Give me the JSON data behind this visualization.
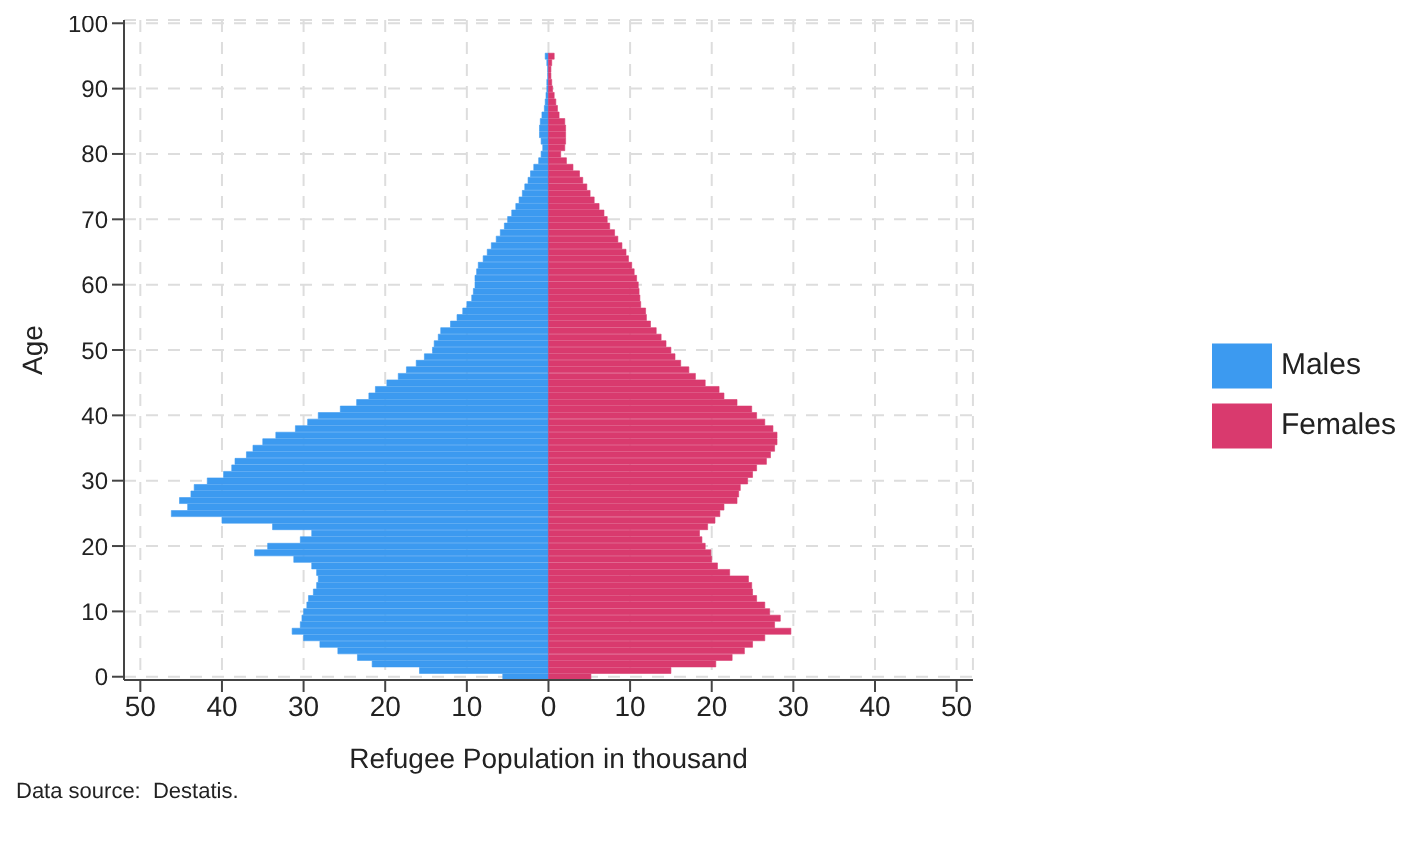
{
  "chart_data": {
    "type": "bar",
    "orientation": "horizontal",
    "stacked": true,
    "xlabel": "Refugee Population in thousand",
    "ylabel": "Age",
    "annotations": [
      "Data source:  Destatis."
    ],
    "categories": [
      "100",
      null,
      null,
      null,
      null,
      null,
      null,
      null,
      null,
      null,
      "90",
      null,
      null,
      null,
      null,
      null,
      null,
      null,
      null,
      null,
      "80",
      null,
      null,
      null,
      null,
      null,
      null,
      null,
      null,
      null,
      "70",
      null,
      null,
      null,
      null,
      null,
      null,
      null,
      null,
      null,
      "60",
      null,
      null,
      null,
      null,
      null,
      null,
      null,
      null,
      null,
      "50",
      null,
      null,
      null,
      null,
      null,
      null,
      null,
      null,
      null,
      "40",
      null,
      null,
      null,
      null,
      null,
      null,
      null,
      null,
      null,
      "30",
      null,
      null,
      null,
      null,
      null,
      null,
      null,
      null,
      null,
      "20",
      null,
      null,
      null,
      null,
      null,
      null,
      null,
      null,
      null,
      "10",
      null,
      null,
      null,
      null,
      null,
      null,
      null,
      null,
      null,
      "0"
    ],
    "series": [
      {
        "name": "Males",
        "color": "#3c9af0",
        "values": [
          null,
          null,
          null,
          null,
          null,
          -0.4,
          -0.2,
          -0.1,
          -0.1,
          -0.2,
          -0.2,
          -0.3,
          -0.4,
          -0.5,
          -0.8,
          -1,
          -1.1,
          -1.1,
          -0.9,
          -0.7,
          -0.9,
          -1.2,
          -1.8,
          -2.2,
          -2.5,
          -2.9,
          -3.2,
          -3.6,
          -4,
          -4.5,
          -5,
          -5.4,
          -5.9,
          -6.4,
          -7,
          -7.5,
          -8,
          -8.6,
          -8.8,
          -9,
          -9,
          -9.2,
          -9.4,
          -10,
          -10.5,
          -11.2,
          -12,
          -13.2,
          -13.5,
          -14,
          -14.2,
          -15.2,
          -16.2,
          -17.4,
          -18.4,
          -19.8,
          -21.2,
          -22,
          -23.5,
          -25.5,
          -28.2,
          -29.5,
          -31,
          -33.4,
          -35,
          -36.2,
          -37,
          -38.4,
          -38.8,
          -39.8,
          -41.8,
          -43.4,
          -43.8,
          -45.2,
          -44.2,
          -46.2,
          -40,
          -33.8,
          -29,
          -30.4,
          -34.4,
          -36,
          -31.2,
          -29,
          -28.4,
          -28.2,
          -28.4,
          -28.8,
          -29.4,
          -29.6,
          -30,
          -30.2,
          -30.4,
          -31.4,
          -30,
          -28,
          -25.8,
          -23.4,
          -21.6,
          -15.8,
          -5.6
        ]
      },
      {
        "name": "Females",
        "color": "#d93a6e",
        "values": [
          null,
          null,
          null,
          null,
          null,
          0.7,
          0.4,
          0.3,
          0.3,
          0.4,
          0.5,
          0.7,
          0.9,
          1.1,
          1.3,
          2,
          2.1,
          2.1,
          2.1,
          2,
          1.5,
          2.2,
          3,
          3.8,
          4.2,
          4.7,
          5.1,
          5.6,
          6.2,
          6.8,
          7.2,
          7.5,
          8.1,
          8.5,
          9,
          9.5,
          9.8,
          10.2,
          10.5,
          10.8,
          11,
          11.1,
          11.2,
          11.3,
          11.9,
          12,
          12.5,
          13.2,
          13.8,
          14.4,
          15,
          15.5,
          16.2,
          17.2,
          18,
          19.2,
          20.9,
          21.5,
          23.1,
          24.9,
          25.5,
          26.5,
          27.5,
          28,
          28,
          27.7,
          27.2,
          26.7,
          25.5,
          25,
          24.4,
          23.5,
          23.3,
          23.1,
          21.5,
          21,
          20.4,
          19.5,
          18.5,
          18.8,
          19.2,
          19.9,
          20,
          20.7,
          22.2,
          24.5,
          24.9,
          25,
          25.5,
          26.5,
          27.1,
          28.4,
          27.7,
          29.7,
          26.5,
          25,
          24,
          22.5,
          20.5,
          15,
          5.2
        ]
      }
    ],
    "xlim": [
      -52,
      52
    ],
    "xticks": [
      {
        "value": -50,
        "label": "50"
      },
      {
        "value": -40,
        "label": "40"
      },
      {
        "value": -30,
        "label": "30"
      },
      {
        "value": -20,
        "label": "20"
      },
      {
        "value": -10,
        "label": "10"
      },
      0,
      10,
      20,
      30,
      40,
      50
    ],
    "grid": true,
    "legend": "right"
  }
}
